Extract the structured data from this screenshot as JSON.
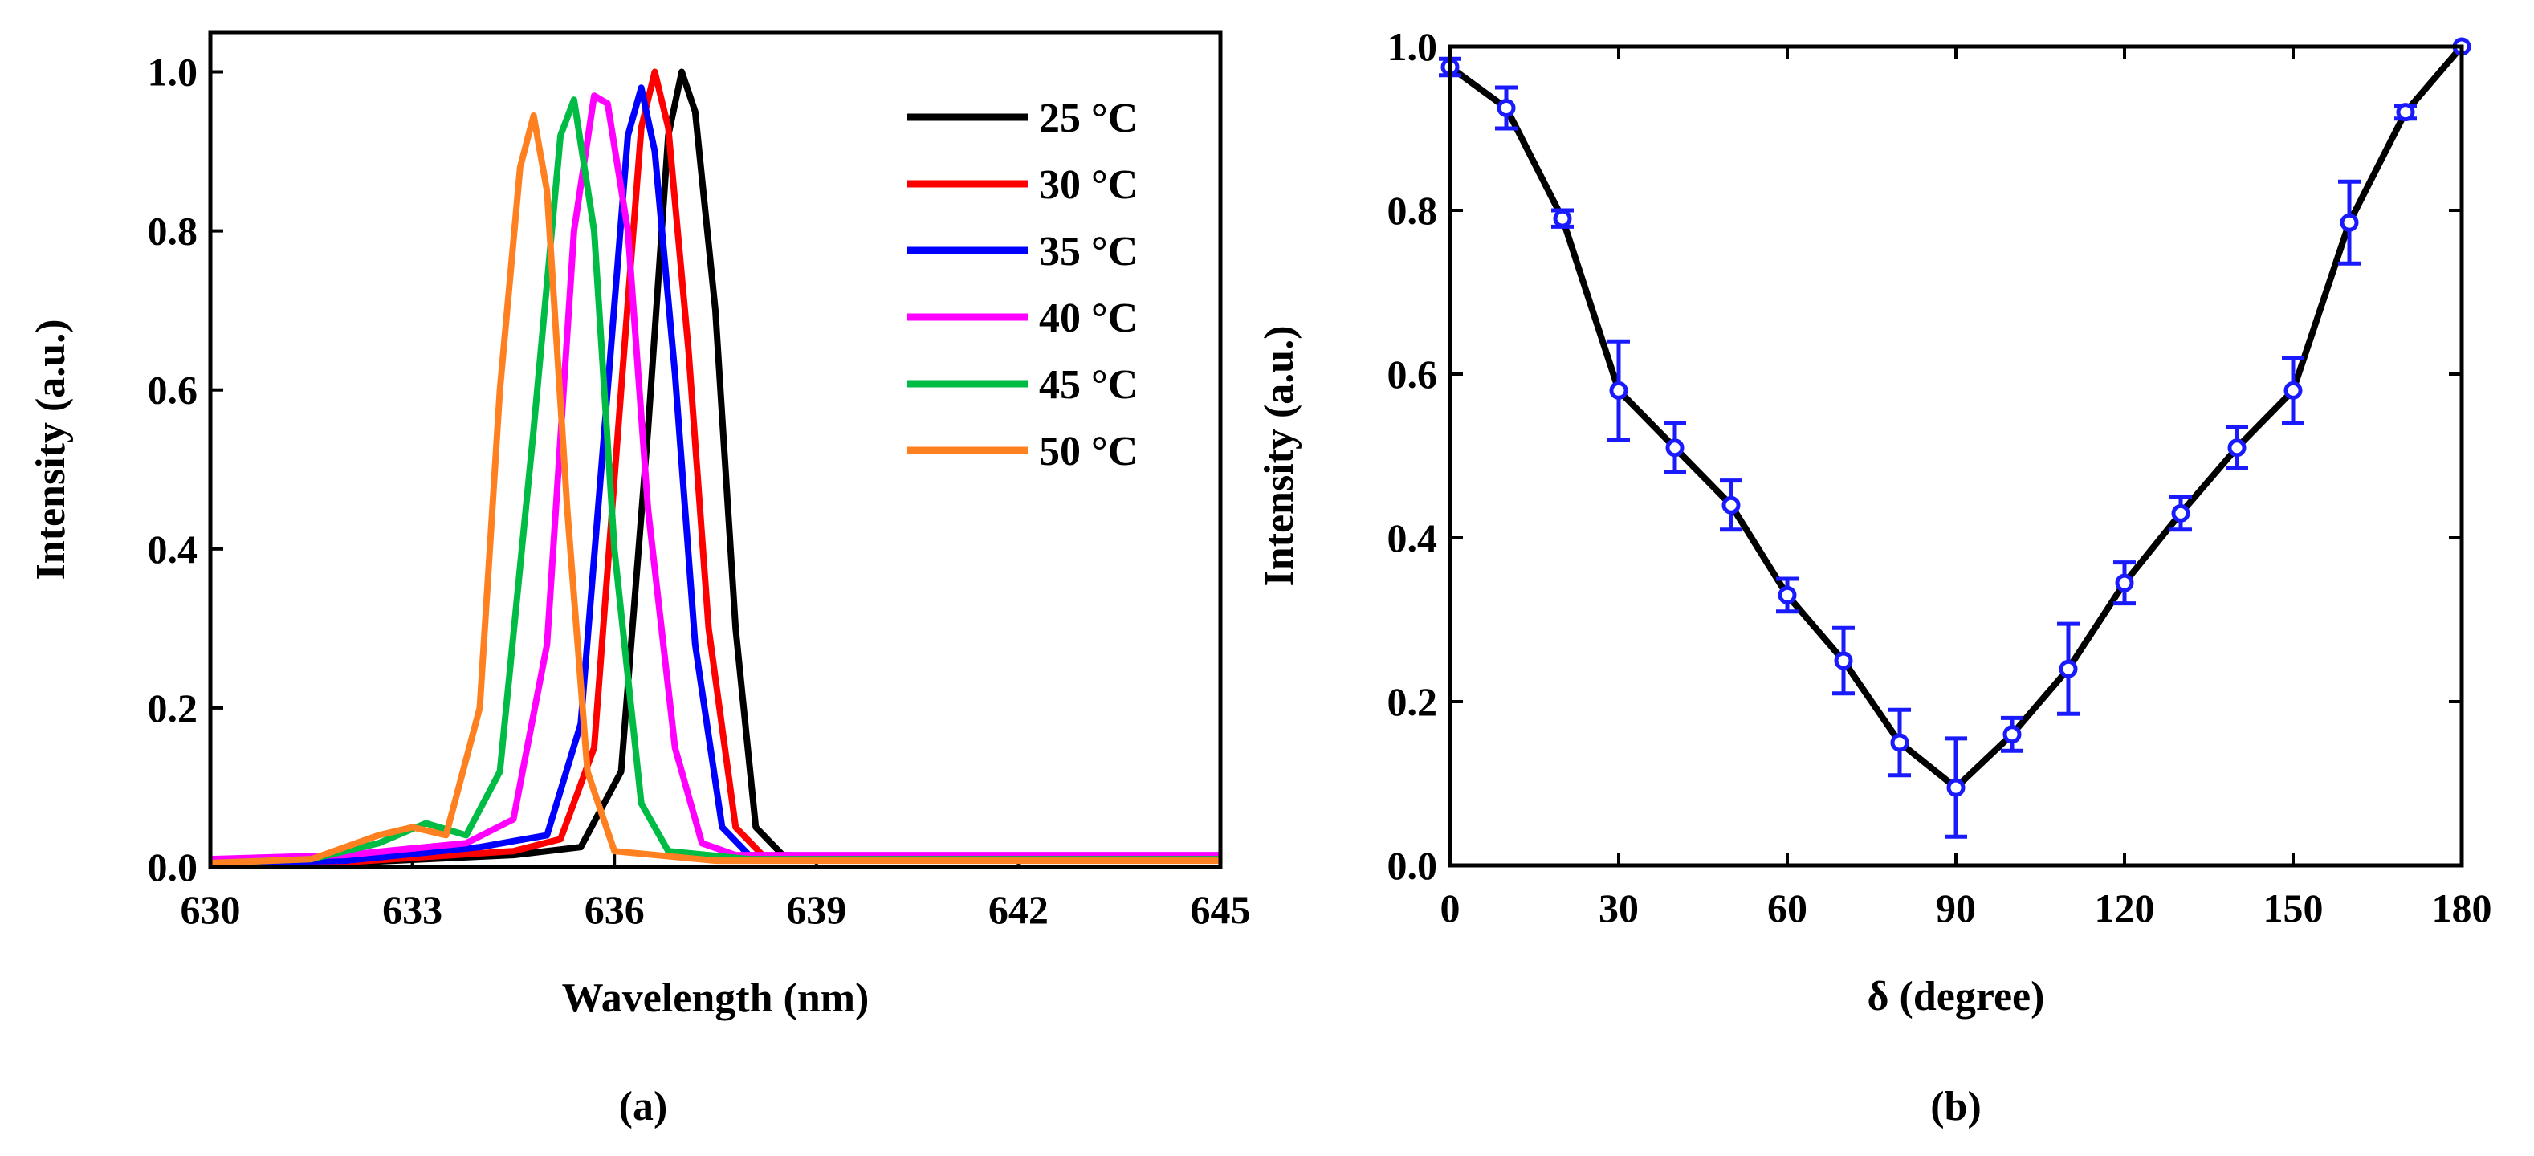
{
  "chart_data": [
    {
      "panel": "(a)",
      "type": "line",
      "xlabel": "Wavelength (nm)",
      "ylabel": "Intensity (a.u.)",
      "xlim": [
        630,
        645
      ],
      "ylim": [
        0,
        1.05
      ],
      "xticks": [
        630,
        633,
        636,
        639,
        642,
        645
      ],
      "yticks": [
        0.0,
        0.2,
        0.4,
        0.6,
        0.8,
        1.0
      ],
      "xtick_labels": [
        "630",
        "633",
        "636",
        "639",
        "642",
        "645"
      ],
      "ytick_labels": [
        "0.0",
        "0.2",
        "0.4",
        "0.6",
        "0.8",
        "1.0"
      ],
      "legend_position": "top-right",
      "series": [
        {
          "name": "25 °C",
          "color": "#000000",
          "x": [
            630,
            632,
            634.5,
            635.5,
            636.1,
            636.5,
            636.8,
            637.0,
            637.2,
            637.5,
            637.8,
            638.1,
            638.5,
            640,
            645
          ],
          "y": [
            0.005,
            0.005,
            0.015,
            0.025,
            0.12,
            0.55,
            0.92,
            1.0,
            0.95,
            0.7,
            0.3,
            0.05,
            0.015,
            0.012,
            0.012
          ]
        },
        {
          "name": "30 °C",
          "color": "#ff0000",
          "x": [
            630,
            632,
            634.5,
            635.2,
            635.7,
            636.1,
            636.4,
            636.6,
            636.8,
            637.1,
            637.4,
            637.8,
            638.2,
            640,
            645
          ],
          "y": [
            0.005,
            0.006,
            0.02,
            0.035,
            0.15,
            0.6,
            0.93,
            1.0,
            0.93,
            0.65,
            0.3,
            0.05,
            0.015,
            0.012,
            0.012
          ]
        },
        {
          "name": "35 °C",
          "color": "#0000ff",
          "x": [
            630,
            632,
            634.0,
            635.0,
            635.5,
            635.9,
            636.2,
            636.4,
            636.6,
            636.9,
            637.2,
            637.6,
            638.0,
            640,
            645
          ],
          "y": [
            0.005,
            0.008,
            0.025,
            0.04,
            0.18,
            0.6,
            0.92,
            0.98,
            0.9,
            0.62,
            0.28,
            0.05,
            0.015,
            0.012,
            0.012
          ]
        },
        {
          "name": "40 °C",
          "color": "#ff00ff",
          "x": [
            630,
            632,
            633.8,
            634.5,
            635.0,
            635.4,
            635.7,
            635.9,
            636.2,
            636.5,
            636.9,
            637.3,
            637.8,
            640,
            645
          ],
          "y": [
            0.01,
            0.015,
            0.03,
            0.06,
            0.28,
            0.8,
            0.97,
            0.96,
            0.8,
            0.45,
            0.15,
            0.03,
            0.015,
            0.015,
            0.015
          ]
        },
        {
          "name": "45 °C",
          "color": "#00bb44",
          "x": [
            630,
            631.5,
            632.5,
            633.2,
            633.8,
            634.3,
            634.8,
            635.2,
            635.4,
            635.7,
            636.0,
            636.4,
            636.8,
            638,
            645
          ],
          "y": [
            0.005,
            0.01,
            0.03,
            0.055,
            0.04,
            0.12,
            0.55,
            0.92,
            0.965,
            0.8,
            0.4,
            0.08,
            0.02,
            0.01,
            0.01
          ]
        },
        {
          "name": "50 °C",
          "color": "#ff8020",
          "x": [
            630,
            631.5,
            632.5,
            633.0,
            633.5,
            634.0,
            634.3,
            634.6,
            634.8,
            635.0,
            635.3,
            635.6,
            636.0,
            637.5,
            645
          ],
          "y": [
            0.005,
            0.01,
            0.04,
            0.05,
            0.04,
            0.2,
            0.6,
            0.88,
            0.945,
            0.85,
            0.45,
            0.12,
            0.02,
            0.008,
            0.008
          ]
        }
      ]
    },
    {
      "panel": "(b)",
      "type": "line",
      "xlabel": "δ (degree)",
      "ylabel": "Intensity (a.u.)",
      "xlim": [
        0,
        180
      ],
      "ylim": [
        0,
        1.0
      ],
      "xticks": [
        0,
        30,
        60,
        90,
        120,
        150,
        180
      ],
      "yticks": [
        0.0,
        0.2,
        0.4,
        0.6,
        0.8,
        1.0
      ],
      "xtick_labels": [
        "0",
        "30",
        "60",
        "90",
        "120",
        "150",
        "180"
      ],
      "ytick_labels": [
        "0.0",
        "0.2",
        "0.4",
        "0.6",
        "0.8",
        "1.0"
      ],
      "series": [
        {
          "name": "Intensity",
          "line_color": "#000000",
          "marker_color": "#1a1aff",
          "x": [
            0,
            10,
            20,
            30,
            40,
            50,
            60,
            70,
            80,
            90,
            100,
            110,
            120,
            130,
            140,
            150,
            160,
            170,
            180
          ],
          "y": [
            0.975,
            0.925,
            0.79,
            0.58,
            0.51,
            0.44,
            0.33,
            0.25,
            0.15,
            0.095,
            0.16,
            0.24,
            0.345,
            0.43,
            0.51,
            0.58,
            0.785,
            0.92,
            1.0
          ],
          "err": [
            0.01,
            0.025,
            0.01,
            0.06,
            0.03,
            0.03,
            0.02,
            0.04,
            0.04,
            0.06,
            0.02,
            0.055,
            0.025,
            0.02,
            0.025,
            0.04,
            0.05,
            0.008,
            0.0
          ]
        }
      ]
    }
  ]
}
